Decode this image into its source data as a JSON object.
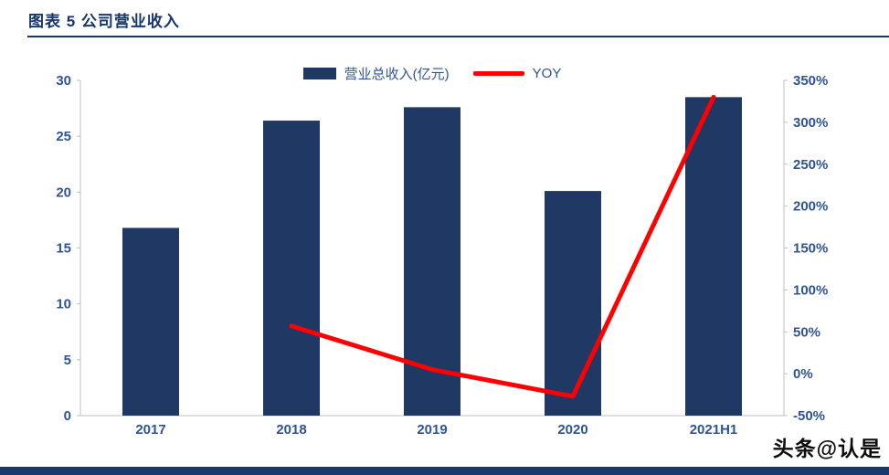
{
  "header": {
    "title": "图表 5  公司营业收入"
  },
  "footer": {
    "watermark": "头条@认是"
  },
  "colors": {
    "accent": "#17376b",
    "bar": "#1f3864",
    "line": "#ff0000",
    "axis_text": "#2e5496",
    "axis_line": "#bfbfbf"
  },
  "chart_data": {
    "type": "bar",
    "title": "公司营业收入",
    "categories": [
      "2017",
      "2018",
      "2019",
      "2020",
      "2021H1"
    ],
    "series": [
      {
        "name": "营业总收入(亿元)",
        "type": "bar",
        "axis": "left",
        "color": "#1f3864",
        "values": [
          16.8,
          26.4,
          27.6,
          20.1,
          28.5
        ]
      },
      {
        "name": "YOY",
        "type": "line",
        "axis": "right",
        "unit": "%",
        "color": "#ff0000",
        "values": [
          null,
          57,
          5,
          -27,
          330
        ]
      }
    ],
    "left_axis": {
      "min": 0,
      "max": 30,
      "step": 5,
      "ticks": [
        "0",
        "5",
        "10",
        "15",
        "20",
        "25",
        "30"
      ]
    },
    "right_axis": {
      "min": -50,
      "max": 350,
      "step": 50,
      "ticks": [
        "-50%",
        "0%",
        "50%",
        "100%",
        "150%",
        "200%",
        "250%",
        "300%",
        "350%"
      ]
    },
    "legend_position": "top-center",
    "grid": false
  }
}
